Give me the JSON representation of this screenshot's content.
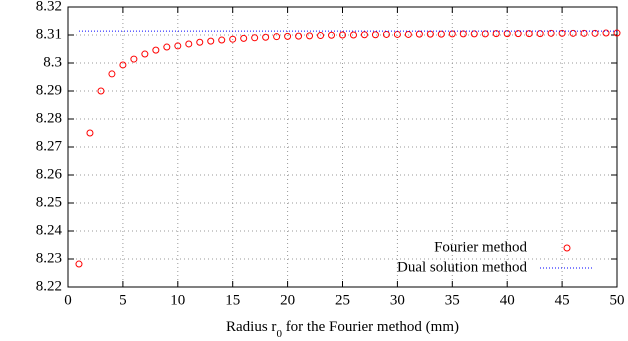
{
  "chart_data": {
    "type": "scatter",
    "xlabel": [
      "Radius r",
      "0",
      " for the Fourier method (mm)"
    ],
    "xlim": [
      0,
      50
    ],
    "xticks": [
      0,
      5,
      10,
      15,
      20,
      25,
      30,
      35,
      40,
      45,
      50
    ],
    "ylim": [
      8.22,
      8.32
    ],
    "yticks": [
      8.22,
      8.23,
      8.24,
      8.25,
      8.26,
      8.27,
      8.28,
      8.29,
      8.3,
      8.31,
      8.32
    ],
    "grid": true,
    "legend": "bottom-right",
    "series": [
      {
        "name": "Fourier method",
        "color": "#ff0000",
        "style": "points",
        "x": [
          1,
          2,
          3,
          4,
          5,
          6,
          7,
          8,
          9,
          10,
          11,
          12,
          13,
          14,
          15,
          16,
          17,
          18,
          19,
          20,
          21,
          22,
          23,
          24,
          25,
          26,
          27,
          28,
          29,
          30,
          31,
          32,
          33,
          34,
          35,
          36,
          37,
          38,
          39,
          40,
          41,
          42,
          43,
          44,
          45,
          46,
          47,
          48,
          49,
          50
        ],
        "values": [
          8.2282,
          8.275,
          8.29,
          8.2961,
          8.2993,
          8.3014,
          8.3032,
          8.3046,
          8.3057,
          8.3061,
          8.3068,
          8.3074,
          8.3078,
          8.3082,
          8.3085,
          8.3088,
          8.309,
          8.3092,
          8.3094,
          8.3095,
          8.3096,
          8.3097,
          8.3098,
          8.3099,
          8.31,
          8.31,
          8.3101,
          8.3101,
          8.3102,
          8.3102,
          8.3102,
          8.3103,
          8.3103,
          8.3103,
          8.3104,
          8.3104,
          8.3104,
          8.3104,
          8.3105,
          8.3105,
          8.3105,
          8.3105,
          8.3105,
          8.3106,
          8.3106,
          8.3106,
          8.3106,
          8.3106,
          8.3107,
          8.3107
        ]
      },
      {
        "name": "Dual solution method",
        "color": "#0000ff",
        "style": "dotted-line",
        "x": [
          1,
          50
        ],
        "values": [
          8.3114,
          8.3114
        ]
      }
    ]
  }
}
